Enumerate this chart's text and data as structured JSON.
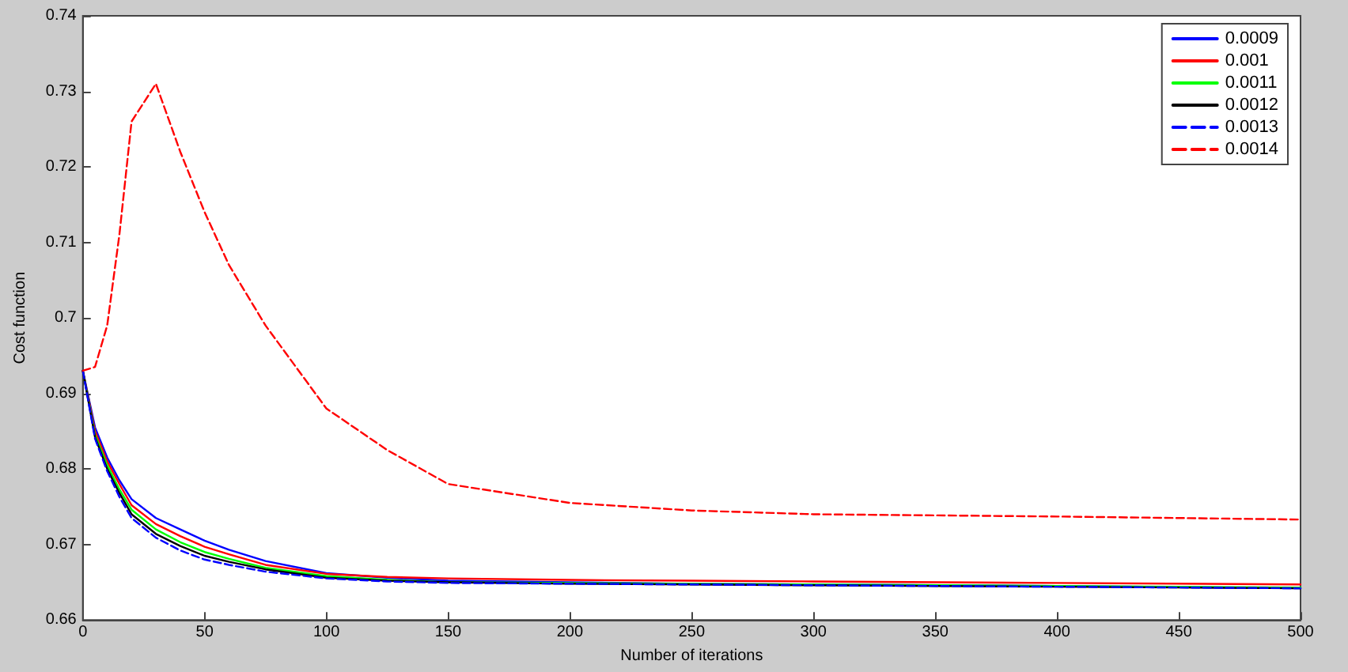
{
  "chart_data": {
    "type": "line",
    "xlabel": "Number of iterations",
    "ylabel": "Cost function",
    "xlim": [
      0,
      500
    ],
    "xticks": [
      0,
      50,
      100,
      150,
      200,
      250,
      300,
      350,
      400,
      450,
      500
    ],
    "ylim": [
      0.66,
      0.74
    ],
    "yticks": [
      0.66,
      0.67,
      0.68,
      0.69,
      0.7,
      0.71,
      0.72,
      0.73,
      0.74
    ],
    "grid": false,
    "legend": "top right",
    "marker": "none",
    "x": [
      0,
      5,
      10,
      15,
      20,
      30,
      40,
      50,
      60,
      75,
      100,
      125,
      150,
      200,
      250,
      300,
      400,
      500
    ],
    "series": [
      {
        "name": "0.0009",
        "color": "#0000ff",
        "line_style": "solid",
        "values": [
          0.693,
          0.6855,
          0.6815,
          0.6785,
          0.676,
          0.6735,
          0.672,
          0.6705,
          0.6693,
          0.6678,
          0.6662,
          0.6656,
          0.6652,
          0.665,
          0.6648,
          0.6647,
          0.6645,
          0.6642
        ]
      },
      {
        "name": "0.001",
        "color": "#ff0000",
        "line_style": "solid",
        "values": [
          0.693,
          0.685,
          0.681,
          0.678,
          0.6752,
          0.6727,
          0.6711,
          0.6697,
          0.6687,
          0.6673,
          0.6661,
          0.6657,
          0.6655,
          0.6653,
          0.6652,
          0.6651,
          0.6649,
          0.6647
        ]
      },
      {
        "name": "0.0011",
        "color": "#00ff00",
        "line_style": "solid",
        "values": [
          0.693,
          0.6845,
          0.6805,
          0.6773,
          0.6746,
          0.672,
          0.6703,
          0.669,
          0.6681,
          0.6669,
          0.6658,
          0.6653,
          0.665,
          0.6649,
          0.6648,
          0.6647,
          0.6645,
          0.6643
        ]
      },
      {
        "name": "0.0012",
        "color": "#000000",
        "line_style": "solid",
        "values": [
          0.693,
          0.6842,
          0.68,
          0.6768,
          0.674,
          0.6714,
          0.6698,
          0.6685,
          0.6677,
          0.6667,
          0.6656,
          0.6652,
          0.665,
          0.6648,
          0.6647,
          0.6646,
          0.6644,
          0.6642
        ]
      },
      {
        "name": "0.0013",
        "color": "#0000ff",
        "line_style": "dashed",
        "values": [
          0.693,
          0.684,
          0.6797,
          0.6763,
          0.6735,
          0.6709,
          0.6692,
          0.668,
          0.6673,
          0.6664,
          0.6655,
          0.6651,
          0.6649,
          0.6648,
          0.6647,
          0.6646,
          0.6644,
          0.6642
        ]
      },
      {
        "name": "0.0014",
        "color": "#ff0000",
        "line_style": "dashed",
        "values": [
          0.693,
          0.6935,
          0.699,
          0.711,
          0.726,
          0.731,
          0.722,
          0.714,
          0.707,
          0.699,
          0.688,
          0.6825,
          0.678,
          0.6755,
          0.6745,
          0.674,
          0.6737,
          0.6733
        ]
      }
    ]
  }
}
